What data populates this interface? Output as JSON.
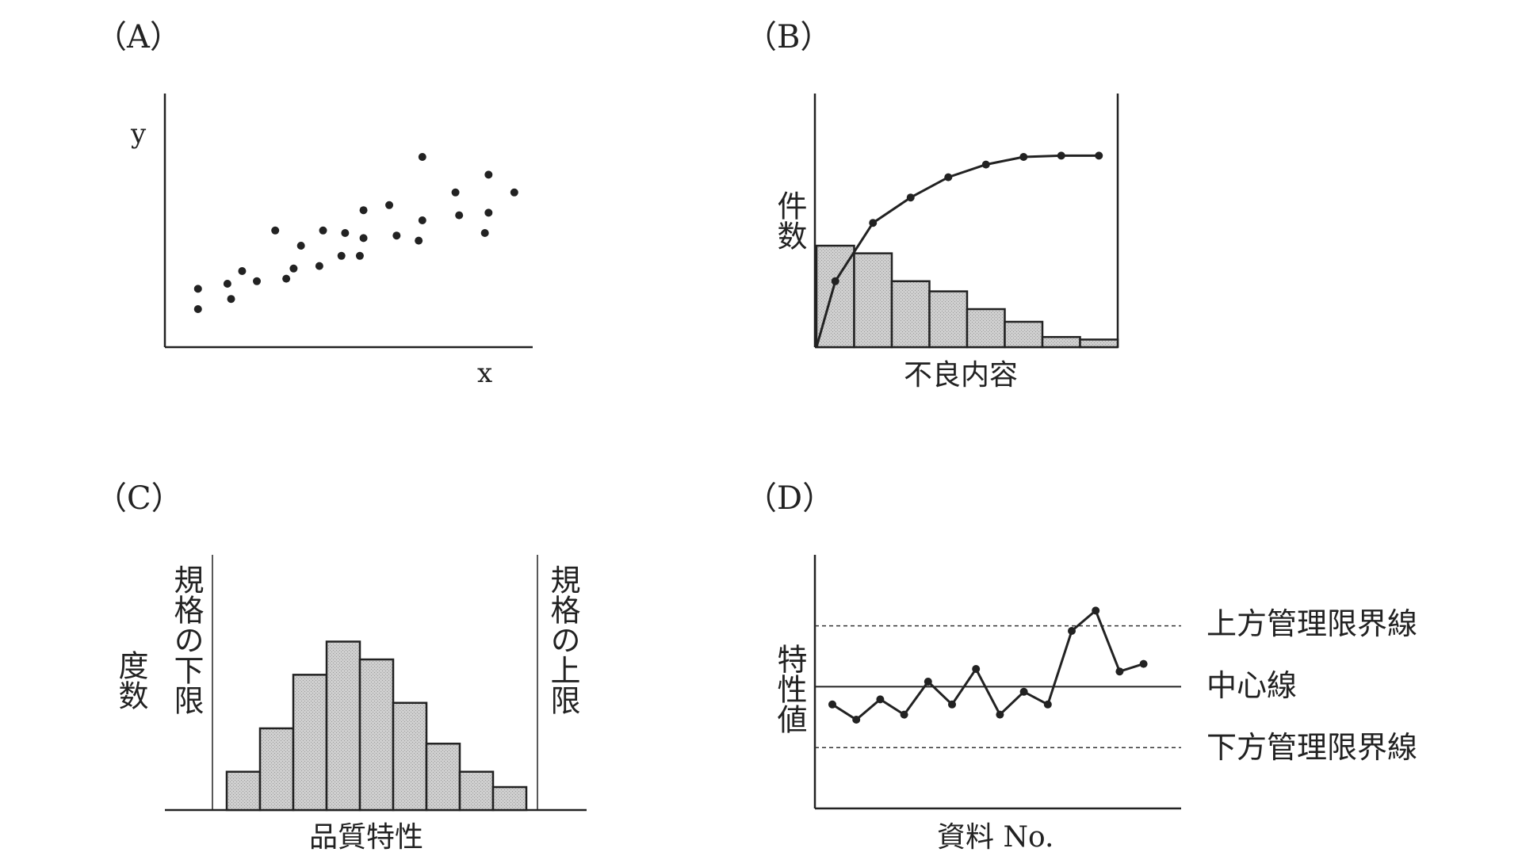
{
  "panels": {
    "A": {
      "label": "（A）"
    },
    "B": {
      "label": "（B）"
    },
    "C": {
      "label": "（C）"
    },
    "D": {
      "label": "（D）"
    }
  },
  "chart_data": [
    {
      "panel": "A",
      "type": "scatter",
      "xlabel": "x",
      "ylabel": "y",
      "xlim": [
        0,
        100
      ],
      "ylim": [
        0,
        100
      ],
      "points": [
        [
          9,
          15
        ],
        [
          9,
          23
        ],
        [
          17,
          25
        ],
        [
          18,
          19
        ],
        [
          21,
          30
        ],
        [
          25,
          26
        ],
        [
          30,
          46
        ],
        [
          33,
          27
        ],
        [
          35,
          31
        ],
        [
          37,
          40
        ],
        [
          42,
          32
        ],
        [
          43,
          46
        ],
        [
          48,
          36
        ],
        [
          49,
          45
        ],
        [
          53,
          36
        ],
        [
          54,
          43
        ],
        [
          54,
          54
        ],
        [
          61,
          56
        ],
        [
          63,
          44
        ],
        [
          69,
          42
        ],
        [
          70,
          50
        ],
        [
          70,
          75
        ],
        [
          79,
          61
        ],
        [
          80,
          52
        ],
        [
          87,
          45
        ],
        [
          88,
          68
        ],
        [
          88,
          53
        ],
        [
          95,
          61
        ]
      ]
    },
    {
      "panel": "B",
      "type": "bar",
      "ylabel": "件数",
      "xlabel": "不良内容",
      "ylim": [
        0,
        100
      ],
      "bars": [
        40,
        37,
        26,
        22,
        15,
        10,
        4,
        3
      ],
      "cumulative": [
        0,
        26,
        49,
        59,
        67,
        72,
        75,
        75.5,
        75.5
      ]
    },
    {
      "panel": "C",
      "type": "bar",
      "ylabel": "度数",
      "xlabel": "品質特性",
      "ylim": [
        0,
        100
      ],
      "bars": [
        15,
        32,
        53,
        66,
        59,
        42,
        26,
        15,
        9
      ],
      "lower_spec_label": "規格の下限",
      "upper_spec_label": "規格の上限"
    },
    {
      "panel": "D",
      "type": "line",
      "ylabel": "特性値",
      "xlabel": "資料 No.",
      "ylim": [
        0,
        100
      ],
      "center_line": 48,
      "ucl": 72,
      "lcl": 24,
      "center_label": "中心線",
      "ucl_label": "上方管理限界線",
      "lcl_label": "下方管理限界線",
      "x": [
        1,
        2,
        3,
        4,
        5,
        6,
        7,
        8,
        9,
        10,
        11,
        12,
        13,
        14
      ],
      "values": [
        41,
        35,
        43,
        37,
        50,
        41,
        55,
        37,
        46,
        41,
        70,
        78,
        54,
        57
      ]
    }
  ]
}
